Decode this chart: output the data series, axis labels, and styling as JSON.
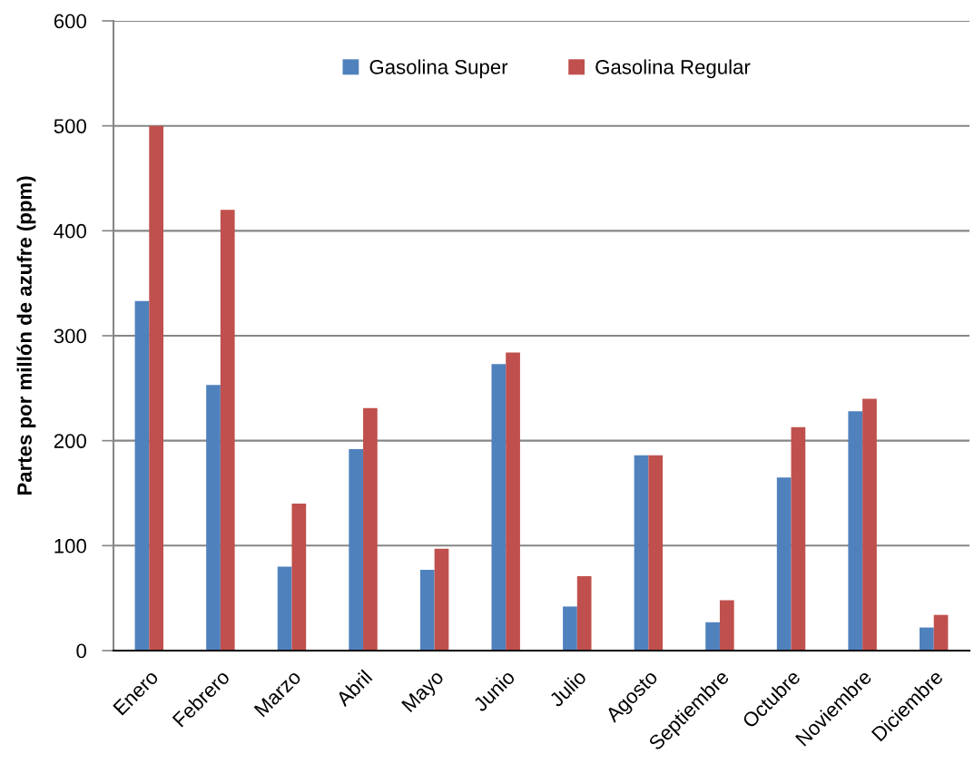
{
  "chart_data": {
    "type": "bar",
    "ylabel": "Partes por millón de azufre (ppm)",
    "categories": [
      "Enero",
      "Febrero",
      "Marzo",
      "Abril",
      "Mayo",
      "Junio",
      "Julio",
      "Agosto",
      "Septiembre",
      "Octubre",
      "Noviembre",
      "Diciembre"
    ],
    "series": [
      {
        "name": "Gasolina Super",
        "color": "#4f81bd",
        "values": [
          333,
          253,
          80,
          192,
          77,
          273,
          42,
          186,
          27,
          165,
          228,
          22
        ]
      },
      {
        "name": "Gasolina Regular",
        "color": "#c0504d",
        "values": [
          500,
          420,
          140,
          231,
          97,
          284,
          71,
          186,
          48,
          213,
          240,
          34
        ]
      }
    ],
    "ylim": [
      0,
      600
    ],
    "yticks": [
      0,
      100,
      200,
      300,
      400,
      500,
      600
    ],
    "grid": "y",
    "legend": "top"
  }
}
